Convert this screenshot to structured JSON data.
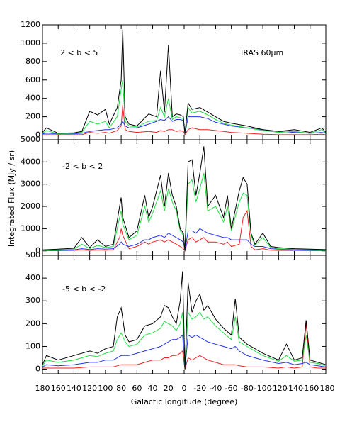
{
  "chart_data": [
    {
      "type": "line",
      "annotations": [
        "2 < b < 5",
        "IRAS 60μm"
      ],
      "xlim": [
        180,
        -180
      ],
      "xticks": [
        180,
        160,
        140,
        120,
        100,
        80,
        60,
        40,
        20,
        0,
        -20,
        -40,
        -60,
        -80,
        -100,
        -120,
        -140,
        -160,
        -180
      ],
      "ylim": [
        -50,
        1200
      ],
      "yticks": [
        0,
        200,
        400,
        600,
        800,
        1000,
        1200
      ],
      "x": [
        180,
        175,
        160,
        140,
        130,
        120,
        110,
        100,
        95,
        85,
        80,
        78,
        75,
        70,
        60,
        45,
        35,
        30,
        25,
        20,
        15,
        10,
        5,
        1,
        -1,
        -5,
        -10,
        -20,
        -30,
        -40,
        -50,
        -60,
        -80,
        -100,
        -120,
        -140,
        -160,
        -175,
        -180
      ],
      "series": [
        {
          "color": "#000000",
          "values": [
            30,
            80,
            20,
            25,
            40,
            260,
            220,
            280,
            120,
            300,
            600,
            1150,
            200,
            120,
            100,
            230,
            200,
            700,
            250,
            980,
            200,
            230,
            220,
            200,
            20,
            350,
            280,
            300,
            250,
            200,
            150,
            130,
            100,
            60,
            40,
            60,
            30,
            80,
            30
          ]
        },
        {
          "color": "#22dd44",
          "values": [
            20,
            50,
            15,
            20,
            30,
            150,
            120,
            150,
            80,
            200,
            500,
            600,
            150,
            100,
            90,
            150,
            160,
            300,
            200,
            400,
            170,
            200,
            190,
            180,
            15,
            300,
            240,
            260,
            220,
            170,
            130,
            110,
            80,
            50,
            30,
            40,
            20,
            60,
            20
          ]
        },
        {
          "color": "#2233ee",
          "values": [
            15,
            20,
            15,
            15,
            20,
            40,
            50,
            60,
            60,
            80,
            120,
            150,
            100,
            80,
            80,
            120,
            150,
            170,
            160,
            200,
            150,
            170,
            170,
            160,
            10,
            200,
            200,
            200,
            180,
            140,
            120,
            100,
            80,
            60,
            40,
            30,
            20,
            30,
            20
          ]
        },
        {
          "color": "#ee2222",
          "values": [
            5,
            5,
            5,
            5,
            5,
            30,
            20,
            30,
            20,
            50,
            100,
            330,
            60,
            40,
            30,
            40,
            30,
            50,
            40,
            60,
            60,
            40,
            50,
            40,
            5,
            60,
            80,
            60,
            60,
            50,
            40,
            30,
            20,
            10,
            5,
            5,
            5,
            10,
            5
          ]
        }
      ]
    },
    {
      "type": "line",
      "annotations": [
        "-2 < b < 2"
      ],
      "ylabel": "Integrated Flux (MJy / sr)",
      "xlim": [
        180,
        -180
      ],
      "xticks": [
        180,
        160,
        140,
        120,
        100,
        80,
        60,
        40,
        20,
        0,
        -20,
        -40,
        -60,
        -80,
        -100,
        -120,
        -140,
        -160,
        -180
      ],
      "ylim": [
        -200,
        5000
      ],
      "yticks": [
        0,
        1000,
        2000,
        3000,
        4000,
        5000
      ],
      "x": [
        180,
        160,
        140,
        130,
        120,
        110,
        100,
        90,
        82,
        80,
        78,
        70,
        60,
        50,
        45,
        40,
        30,
        25,
        20,
        15,
        10,
        5,
        1,
        -1,
        -5,
        -10,
        -15,
        -20,
        -25,
        -30,
        -40,
        -50,
        -55,
        -60,
        -70,
        -75,
        -80,
        -85,
        -90,
        -100,
        -110,
        -120,
        -140,
        -160,
        -180
      ],
      "series": [
        {
          "color": "#000000",
          "values": [
            50,
            80,
            120,
            600,
            150,
            500,
            200,
            300,
            2000,
            2400,
            1500,
            600,
            900,
            2500,
            1500,
            2000,
            3400,
            2000,
            3500,
            2500,
            2000,
            1000,
            800,
            0,
            4000,
            4100,
            2500,
            3500,
            4700,
            2000,
            2500,
            1500,
            2500,
            1000,
            2700,
            3300,
            3000,
            800,
            300,
            800,
            200,
            150,
            100,
            80,
            60
          ]
        },
        {
          "color": "#22dd44",
          "values": [
            30,
            50,
            80,
            300,
            100,
            250,
            150,
            200,
            1500,
            1800,
            1200,
            500,
            700,
            2000,
            1300,
            1700,
            2700,
            1800,
            2800,
            2200,
            1800,
            900,
            700,
            0,
            3000,
            3200,
            2200,
            2800,
            3500,
            1800,
            2000,
            1300,
            2000,
            900,
            2200,
            2600,
            2500,
            700,
            250,
            600,
            150,
            100,
            80,
            60,
            40
          ]
        },
        {
          "color": "#2233ee",
          "values": [
            20,
            30,
            50,
            100,
            60,
            100,
            80,
            100,
            300,
            400,
            300,
            200,
            300,
            500,
            500,
            600,
            700,
            600,
            800,
            700,
            600,
            500,
            400,
            0,
            900,
            900,
            800,
            1000,
            900,
            800,
            700,
            600,
            600,
            500,
            500,
            500,
            500,
            300,
            200,
            200,
            100,
            80,
            50,
            40,
            30
          ]
        },
        {
          "color": "#ee2222",
          "values": [
            10,
            10,
            20,
            50,
            20,
            40,
            30,
            50,
            600,
            1000,
            700,
            100,
            200,
            400,
            300,
            400,
            500,
            400,
            500,
            400,
            300,
            200,
            100,
            0,
            500,
            600,
            400,
            500,
            600,
            400,
            400,
            300,
            400,
            200,
            300,
            1500,
            1800,
            200,
            50,
            100,
            30,
            20,
            20,
            10,
            10
          ]
        }
      ]
    },
    {
      "type": "line",
      "annotations": [
        "-5 < b < -2"
      ],
      "xlabel": "Galactic longitude (degree)",
      "xlim": [
        180,
        -180
      ],
      "xticks": [
        180,
        160,
        140,
        120,
        100,
        80,
        60,
        40,
        20,
        0,
        -20,
        -40,
        -60,
        -80,
        -100,
        -120,
        -140,
        -160,
        -180
      ],
      "ylim": [
        -20,
        500
      ],
      "yticks": [
        0,
        100,
        200,
        300,
        400,
        500
      ],
      "x": [
        180,
        175,
        160,
        140,
        120,
        110,
        100,
        90,
        85,
        80,
        75,
        70,
        60,
        50,
        40,
        30,
        25,
        20,
        15,
        10,
        5,
        2,
        -1,
        -5,
        -10,
        -15,
        -20,
        -25,
        -30,
        -40,
        -50,
        -60,
        -65,
        -70,
        -80,
        -90,
        -100,
        -120,
        -130,
        -140,
        -150,
        -155,
        -160,
        -170,
        -180
      ],
      "series": [
        {
          "color": "#000000",
          "values": [
            20,
            60,
            40,
            60,
            80,
            70,
            90,
            100,
            230,
            270,
            150,
            120,
            130,
            190,
            200,
            230,
            280,
            270,
            230,
            200,
            300,
            430,
            0,
            380,
            250,
            300,
            330,
            260,
            280,
            220,
            180,
            150,
            310,
            140,
            110,
            90,
            70,
            40,
            110,
            40,
            50,
            215,
            40,
            30,
            20
          ]
        },
        {
          "color": "#22dd44",
          "values": [
            15,
            40,
            30,
            40,
            60,
            55,
            70,
            80,
            130,
            160,
            120,
            100,
            110,
            150,
            160,
            180,
            210,
            200,
            190,
            170,
            200,
            250,
            0,
            250,
            220,
            230,
            250,
            220,
            230,
            190,
            160,
            130,
            230,
            120,
            100,
            80,
            60,
            35,
            60,
            35,
            40,
            150,
            30,
            25,
            15
          ]
        },
        {
          "color": "#2233ee",
          "values": [
            10,
            20,
            15,
            20,
            30,
            30,
            40,
            40,
            50,
            60,
            60,
            60,
            70,
            80,
            90,
            100,
            110,
            120,
            130,
            130,
            140,
            150,
            0,
            150,
            140,
            150,
            140,
            130,
            120,
            110,
            100,
            90,
            100,
            80,
            60,
            50,
            40,
            25,
            30,
            20,
            25,
            30,
            20,
            15,
            10
          ]
        },
        {
          "color": "#ee2222",
          "values": [
            5,
            5,
            5,
            5,
            10,
            10,
            10,
            10,
            15,
            20,
            20,
            20,
            20,
            30,
            40,
            40,
            50,
            50,
            60,
            60,
            70,
            80,
            0,
            50,
            40,
            50,
            60,
            50,
            40,
            30,
            20,
            20,
            20,
            15,
            10,
            10,
            10,
            5,
            10,
            5,
            10,
            200,
            10,
            5,
            5
          ]
        }
      ]
    }
  ]
}
